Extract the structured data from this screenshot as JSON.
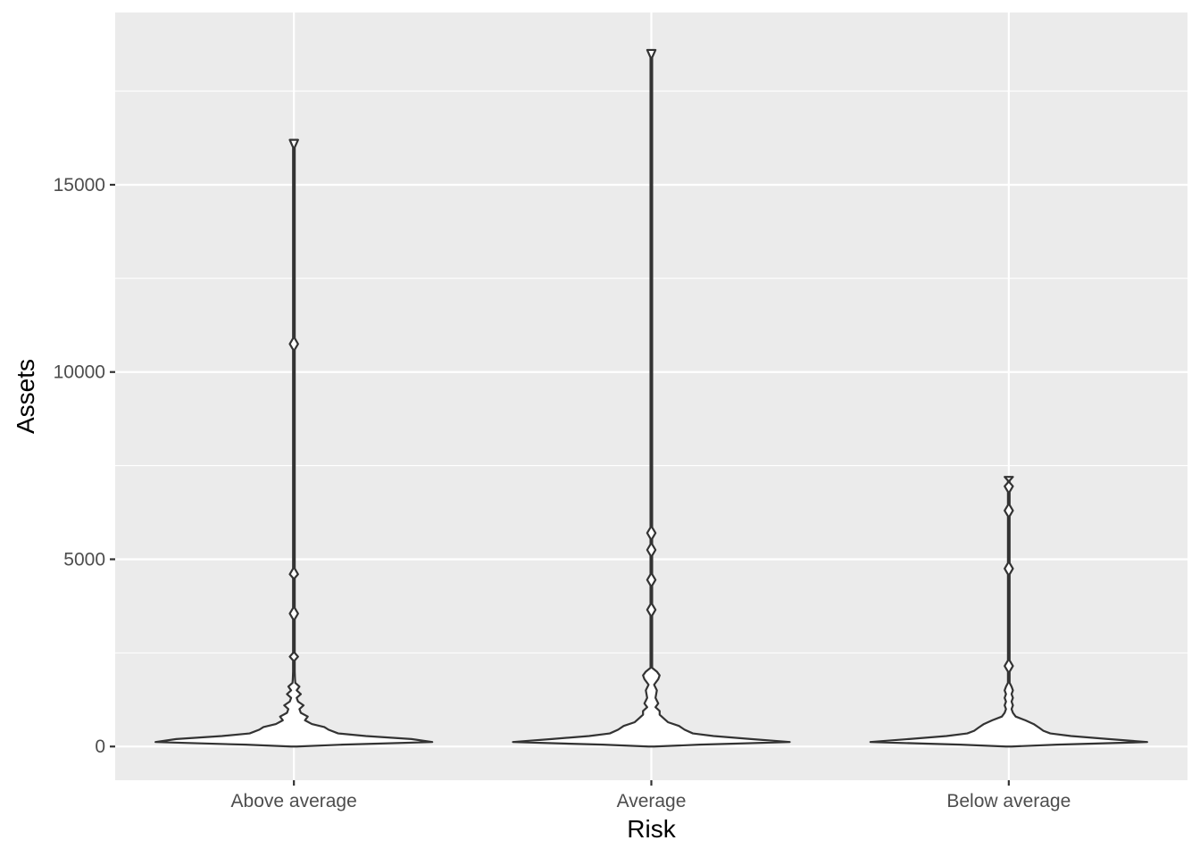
{
  "chart_data": {
    "type": "violin",
    "xlabel": "Risk",
    "ylabel": "Assets",
    "categories": [
      "Above average",
      "Average",
      "Below average"
    ],
    "y_ticks": [
      0,
      5000,
      10000,
      15000
    ],
    "y_tick_labels": [
      "0",
      "5000",
      "10000",
      "15000"
    ],
    "ylim": [
      -900,
      19600
    ],
    "grid": true,
    "background": "#EBEBEB",
    "gridline_color": "#FFFFFF",
    "outline_color": "#333333",
    "fill_color": "#FFFFFF",
    "series": [
      {
        "category": "Above average",
        "min": 0,
        "max": 16200,
        "profile": [
          [
            0,
            0.02
          ],
          [
            50,
            0.35
          ],
          [
            120,
            1.0
          ],
          [
            200,
            0.85
          ],
          [
            280,
            0.52
          ],
          [
            350,
            0.32
          ],
          [
            450,
            0.25
          ],
          [
            520,
            0.22
          ],
          [
            600,
            0.13
          ],
          [
            700,
            0.08
          ],
          [
            800,
            0.1
          ],
          [
            900,
            0.05
          ],
          [
            1000,
            0.04
          ],
          [
            1100,
            0.07
          ],
          [
            1200,
            0.03
          ],
          [
            1300,
            0.02
          ],
          [
            1400,
            0.05
          ],
          [
            1500,
            0.02
          ],
          [
            1600,
            0.04
          ],
          [
            1700,
            0.01
          ],
          [
            1800,
            0.008
          ],
          [
            2000,
            0.006
          ],
          [
            2300,
            0.006
          ],
          [
            2400,
            0.03
          ],
          [
            2500,
            0.006
          ],
          [
            3400,
            0.006
          ],
          [
            3550,
            0.03
          ],
          [
            3700,
            0.006
          ],
          [
            4500,
            0.006
          ],
          [
            4600,
            0.03
          ],
          [
            4750,
            0.006
          ],
          [
            10600,
            0.006
          ],
          [
            10750,
            0.03
          ],
          [
            10900,
            0.006
          ],
          [
            16000,
            0.006
          ],
          [
            16200,
            0.03
          ]
        ]
      },
      {
        "category": "Average",
        "min": 0,
        "max": 18600,
        "profile": [
          [
            0,
            0.02
          ],
          [
            50,
            0.35
          ],
          [
            120,
            1.0
          ],
          [
            200,
            0.72
          ],
          [
            280,
            0.45
          ],
          [
            350,
            0.3
          ],
          [
            450,
            0.24
          ],
          [
            550,
            0.2
          ],
          [
            650,
            0.12
          ],
          [
            750,
            0.09
          ],
          [
            850,
            0.06
          ],
          [
            950,
            0.06
          ],
          [
            1050,
            0.03
          ],
          [
            1150,
            0.05
          ],
          [
            1300,
            0.03
          ],
          [
            1500,
            0.04
          ],
          [
            1650,
            0.02
          ],
          [
            1800,
            0.05
          ],
          [
            1900,
            0.06
          ],
          [
            2000,
            0.04
          ],
          [
            2100,
            0.006
          ],
          [
            3500,
            0.006
          ],
          [
            3650,
            0.03
          ],
          [
            3800,
            0.006
          ],
          [
            4300,
            0.006
          ],
          [
            4450,
            0.03
          ],
          [
            4600,
            0.006
          ],
          [
            5100,
            0.006
          ],
          [
            5250,
            0.03
          ],
          [
            5400,
            0.006
          ],
          [
            5550,
            0.006
          ],
          [
            5700,
            0.03
          ],
          [
            5850,
            0.006
          ],
          [
            18400,
            0.006
          ],
          [
            18600,
            0.03
          ]
        ]
      },
      {
        "category": "Below average",
        "min": 0,
        "max": 7200,
        "profile": [
          [
            0,
            0.02
          ],
          [
            50,
            0.35
          ],
          [
            120,
            1.0
          ],
          [
            200,
            0.72
          ],
          [
            280,
            0.45
          ],
          [
            350,
            0.3
          ],
          [
            420,
            0.25
          ],
          [
            500,
            0.22
          ],
          [
            600,
            0.18
          ],
          [
            700,
            0.12
          ],
          [
            800,
            0.05
          ],
          [
            900,
            0.03
          ],
          [
            1000,
            0.02
          ],
          [
            1100,
            0.03
          ],
          [
            1200,
            0.02
          ],
          [
            1300,
            0.03
          ],
          [
            1400,
            0.02
          ],
          [
            1500,
            0.03
          ],
          [
            1600,
            0.02
          ],
          [
            1700,
            0.006
          ],
          [
            2000,
            0.006
          ],
          [
            2150,
            0.03
          ],
          [
            2300,
            0.006
          ],
          [
            4600,
            0.006
          ],
          [
            4750,
            0.03
          ],
          [
            4900,
            0.006
          ],
          [
            6150,
            0.006
          ],
          [
            6300,
            0.03
          ],
          [
            6450,
            0.006
          ],
          [
            6800,
            0.006
          ],
          [
            6950,
            0.03
          ],
          [
            7050,
            0.006
          ],
          [
            7100,
            0.006
          ],
          [
            7200,
            0.03
          ]
        ]
      }
    ]
  }
}
